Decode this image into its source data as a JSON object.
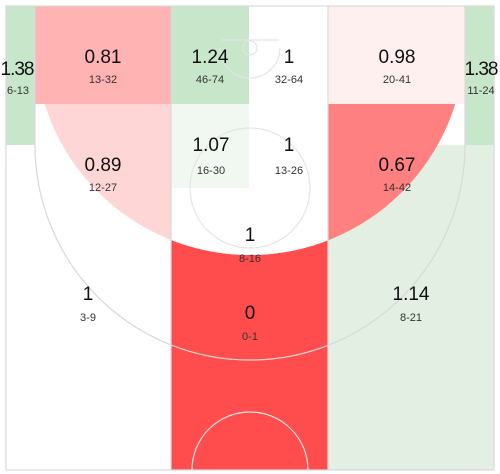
{
  "colors": {
    "red_strong": "#ff4d4d",
    "red_mid": "#ff8080",
    "red_light": "#ffb3b3",
    "red_pale": "#ffd6d6",
    "red_faint": "#fff0f0",
    "green_mid": "#c8e6c9",
    "green_light": "#e3efe3",
    "green_faint": "#f1f8f1",
    "neutral": "#ffffff",
    "court_lines": "#d8d8d8"
  },
  "chart_data": {
    "type": "heatmap",
    "title": "",
    "zones": [
      {
        "id": "left-corner-three",
        "value": "1.38",
        "made_attempts": "6-13",
        "color": "green_mid"
      },
      {
        "id": "left-wing-three",
        "value": "0.81",
        "made_attempts": "13-32",
        "color": "red_light"
      },
      {
        "id": "top-left-paint",
        "value": "1.24",
        "made_attempts": "46-74",
        "color": "green_mid"
      },
      {
        "id": "top-right-paint",
        "value": "1",
        "made_attempts": "32-64",
        "color": "neutral"
      },
      {
        "id": "right-wing-three",
        "value": "0.98",
        "made_attempts": "20-41",
        "color": "red_faint"
      },
      {
        "id": "right-corner-three",
        "value": "1.38",
        "made_attempts": "11-24",
        "color": "green_mid"
      },
      {
        "id": "left-midrange",
        "value": "0.89",
        "made_attempts": "12-27",
        "color": "red_pale"
      },
      {
        "id": "left-short-paint",
        "value": "1.07",
        "made_attempts": "16-30",
        "color": "green_faint"
      },
      {
        "id": "right-short-paint",
        "value": "1",
        "made_attempts": "13-26",
        "color": "neutral"
      },
      {
        "id": "right-midrange",
        "value": "0.67",
        "made_attempts": "14-42",
        "color": "red_mid"
      },
      {
        "id": "free-throw-line",
        "value": "1",
        "made_attempts": "8-16",
        "color": "neutral"
      },
      {
        "id": "left-above-break-three",
        "value": "1",
        "made_attempts": "3-9",
        "color": "neutral"
      },
      {
        "id": "top-of-key-three",
        "value": "0",
        "made_attempts": "0-1",
        "color": "red_strong"
      },
      {
        "id": "right-above-break-three",
        "value": "1.14",
        "made_attempts": "8-21",
        "color": "green_light"
      }
    ]
  }
}
